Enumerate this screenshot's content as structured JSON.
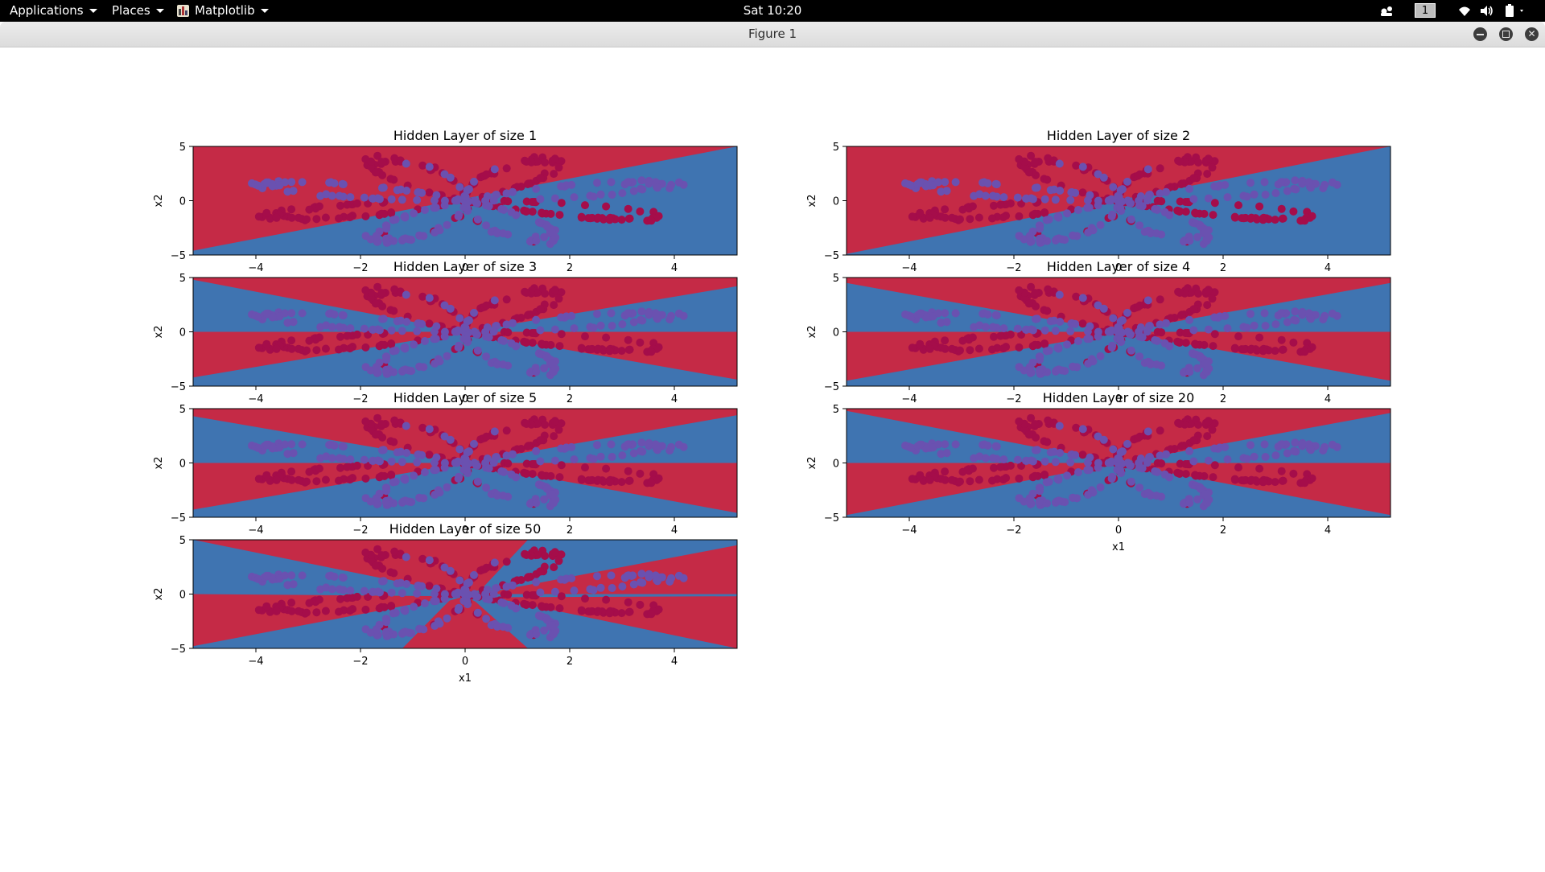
{
  "topbar": {
    "applications_label": "Applications",
    "places_label": "Places",
    "app_label": "Matplotlib",
    "clock": "Sat 10:20",
    "workspace": "1"
  },
  "window": {
    "title": "Figure 1"
  },
  "colors": {
    "red": "#c52a46",
    "blue": "#3f74b1",
    "dot_red": "#a50d4a",
    "dot_purple": "#6a51b0"
  },
  "chart_data": [
    {
      "type": "contour-scatter",
      "title": "Hidden Layer of size 1",
      "xlabel": "",
      "ylabel": "x2",
      "xlim": [
        -5.2,
        5.2
      ],
      "ylim": [
        -5,
        5
      ],
      "xticks": [
        -4,
        -2,
        0,
        2,
        4
      ],
      "yticks": [
        -5,
        0,
        5
      ],
      "classes": [
        "red",
        "blue"
      ]
    },
    {
      "type": "contour-scatter",
      "title": "Hidden Layer of size 2",
      "xlabel": "",
      "ylabel": "x2",
      "xlim": [
        -5.2,
        5.2
      ],
      "ylim": [
        -5,
        5
      ],
      "xticks": [
        -4,
        -2,
        0,
        2,
        4
      ],
      "yticks": [
        -5,
        0,
        5
      ],
      "classes": [
        "red",
        "blue"
      ]
    },
    {
      "type": "contour-scatter",
      "title": "Hidden Layer of size 3",
      "xlabel": "",
      "ylabel": "x2",
      "xlim": [
        -5.2,
        5.2
      ],
      "ylim": [
        -5,
        5
      ],
      "xticks": [
        -4,
        -2,
        0,
        2,
        4
      ],
      "yticks": [
        -5,
        0,
        5
      ],
      "classes": [
        "red",
        "blue"
      ]
    },
    {
      "type": "contour-scatter",
      "title": "Hidden Layer of size 4",
      "xlabel": "",
      "ylabel": "x2",
      "xlim": [
        -5.2,
        5.2
      ],
      "ylim": [
        -5,
        5
      ],
      "xticks": [
        -4,
        -2,
        0,
        2,
        4
      ],
      "yticks": [
        -5,
        0,
        5
      ],
      "classes": [
        "red",
        "blue"
      ]
    },
    {
      "type": "contour-scatter",
      "title": "Hidden Layer of size 5",
      "xlabel": "",
      "ylabel": "x2",
      "xlim": [
        -5.2,
        5.2
      ],
      "ylim": [
        -5,
        5
      ],
      "xticks": [
        -4,
        -2,
        0,
        2,
        4
      ],
      "yticks": [
        -5,
        0,
        5
      ],
      "classes": [
        "red",
        "blue"
      ]
    },
    {
      "type": "contour-scatter",
      "title": "Hidden Layer of size 20",
      "xlabel": "x1",
      "ylabel": "x2",
      "xlim": [
        -5.2,
        5.2
      ],
      "ylim": [
        -5,
        5
      ],
      "xticks": [
        -4,
        -2,
        0,
        2,
        4
      ],
      "yticks": [
        -5,
        0,
        5
      ],
      "classes": [
        "red",
        "blue"
      ]
    },
    {
      "type": "contour-scatter",
      "title": "Hidden Layer of size 50",
      "xlabel": "x1",
      "ylabel": "x2",
      "xlim": [
        -5.2,
        5.2
      ],
      "ylim": [
        -5,
        5
      ],
      "xticks": [
        -4,
        -2,
        0,
        2,
        4
      ],
      "yticks": [
        -5,
        0,
        5
      ],
      "classes": [
        "red",
        "blue"
      ]
    }
  ]
}
